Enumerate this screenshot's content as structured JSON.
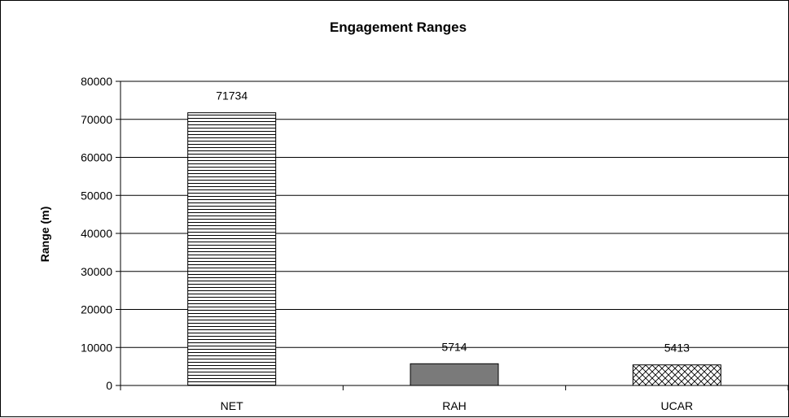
{
  "chart_data": {
    "type": "bar",
    "title": "Engagement Ranges",
    "xlabel": "",
    "ylabel": "Range (m)",
    "categories": [
      "NET",
      "RAH",
      "UCAR"
    ],
    "values": [
      71734,
      5714,
      5413
    ],
    "data_labels": [
      "71734",
      "5714",
      "5413"
    ],
    "ylim": [
      0,
      80000
    ],
    "yticks": [
      0,
      10000,
      20000,
      30000,
      40000,
      50000,
      60000,
      70000,
      80000
    ],
    "ytick_labels": [
      "0",
      "10000",
      "20000",
      "30000",
      "40000",
      "50000",
      "60000",
      "70000",
      "80000"
    ],
    "grid": true,
    "legend": "none",
    "bar_styles": [
      "horizontal-stripes",
      "solid-gray",
      "crosshatch"
    ],
    "colors": {
      "solid_bar": "#7a7a7a",
      "grid": "#000000",
      "axis": "#000000"
    }
  }
}
